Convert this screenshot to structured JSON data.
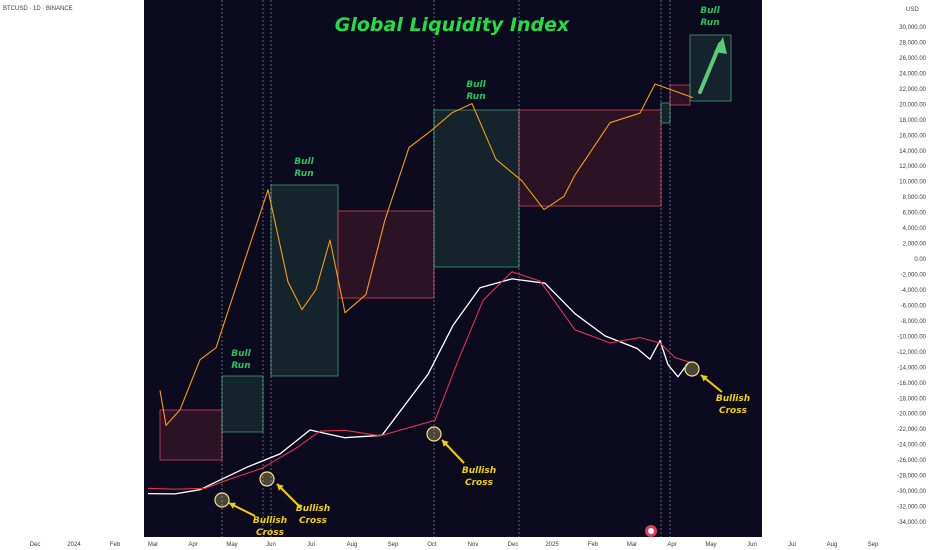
{
  "header": {
    "symbol": "BTCUSD · 1D · BINANCE",
    "currency": "USD"
  },
  "chart_data": {
    "type": "line",
    "title": "Global Liquidity Index",
    "x_axis_ticks": [
      "Dec",
      "2024",
      "Feb",
      "Mar",
      "Apr",
      "May",
      "Jun",
      "Jul",
      "Aug",
      "Sep",
      "Oct",
      "Nov",
      "Dec",
      "2025",
      "Feb",
      "Mar",
      "Apr",
      "May",
      "Jun",
      "Jul",
      "Aug",
      "Sep"
    ],
    "y_axis_ticks": [
      "30,000.00",
      "28,000.00",
      "26,000.00",
      "24,000.00",
      "22,000.00",
      "20,000.00",
      "18,000.00",
      "16,000.00",
      "14,000.00",
      "12,000.00",
      "10,000.00",
      "8,000.00",
      "6,000.00",
      "4,000.00",
      "2,000.00",
      "0.00",
      "-2,000.00",
      "-4,000.00",
      "-6,000.00",
      "-8,000.00",
      "-10,000.00",
      "-12,000.00",
      "-14,000.00",
      "-16,000.00",
      "-18,000.00",
      "-20,000.00",
      "-22,000.00",
      "-24,000.00",
      "-26,000.00",
      "-28,000.00",
      "-30,000.00",
      "-32,000.00",
      "-34,000.00"
    ],
    "series": [
      {
        "values": [
          -17000,
          -21500,
          -19500,
          -13000,
          -11500,
          9000,
          -3000,
          -6500,
          -4000,
          2500,
          -7000,
          -4500,
          5000,
          14500,
          16500,
          19000,
          20000,
          13000,
          10000,
          6500,
          8000,
          11000,
          17500,
          19000,
          22500,
          21000
        ]
      },
      {
        "values": [
          -30200,
          -30500,
          -29700,
          -29000,
          -26800,
          -25300,
          -22000,
          -23200,
          -22700,
          -15000,
          -8500,
          -3800,
          -2500,
          -3200,
          -7000,
          -10000,
          -11500,
          -13000,
          -10500,
          -13700,
          -15200,
          -13500
        ]
      },
      {
        "values": [
          -29500,
          -29900,
          -29500,
          -28600,
          -26900,
          -24700,
          -22100,
          -22300,
          -22700,
          -21000,
          -13000,
          -5500,
          -1500,
          -3000,
          -9000,
          -11000,
          -10000,
          -11000,
          -12600,
          -13500
        ]
      }
    ],
    "ylim": [
      -34000,
      30000
    ]
  },
  "annotations": [
    {
      "top": "Bull",
      "bottom": "Run",
      "color": "#22c55e"
    },
    {
      "top": "Bull",
      "bottom": "Run",
      "color": "#22c55e"
    },
    {
      "top": "Bull",
      "bottom": "Run",
      "color": "#22c55e"
    },
    {
      "top": "Bull",
      "bottom": "Run",
      "color": "#22c55e"
    },
    {
      "top": "Bullish",
      "bottom": "Cross",
      "color": "#f0d000"
    },
    {
      "top": "Bullish",
      "bottom": "Cross",
      "color": "#f0d000"
    },
    {
      "top": "Bullish",
      "bottom": "Cross",
      "color": "#f0d000"
    },
    {
      "top": "Bullish",
      "bottom": "Cross",
      "color": "#f0d000"
    }
  ],
  "colors": {
    "background": "#0c0a1e",
    "title": "#22dd44",
    "price": "#f59e0b",
    "liquidity": "#ffffff",
    "moving_average": "#e0344a",
    "cross_marker": "#f5e08a"
  }
}
